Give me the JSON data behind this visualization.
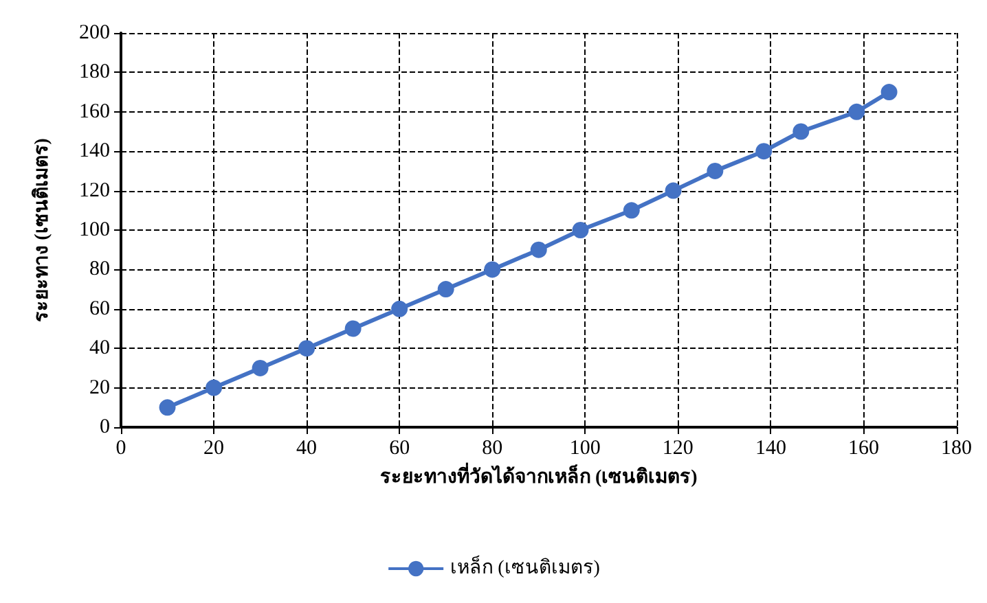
{
  "chart_data": {
    "type": "line",
    "xlabel": "ระยะทางที่วัดได้จากเหล็ก (เซนติเมตร)",
    "ylabel": "ระยะทาง (เซนติเมตร)",
    "x": [
      10,
      20,
      30,
      40,
      50,
      60,
      70,
      80,
      90,
      99,
      110,
      119,
      128,
      138.5,
      146.5,
      158.5,
      165.5
    ],
    "series": [
      {
        "name": "เหล็ก (เซนติเมตร)",
        "color": "#4472c4",
        "values": [
          10,
          20,
          30,
          40,
          50,
          60,
          70,
          80,
          90,
          100,
          110,
          120,
          130,
          140,
          150,
          160,
          170
        ]
      }
    ],
    "xlim": [
      0,
      180
    ],
    "xticks": [
      0,
      20,
      40,
      60,
      80,
      100,
      120,
      140,
      160,
      180
    ],
    "ylim": [
      0,
      200
    ],
    "yticks": [
      0,
      20,
      40,
      60,
      80,
      100,
      120,
      140,
      160,
      180,
      200
    ],
    "grid": true,
    "legend": "bottom",
    "marker": "circle",
    "line_style": "solid"
  }
}
